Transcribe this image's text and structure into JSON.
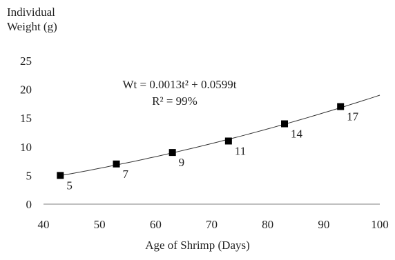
{
  "chart_data": {
    "type": "scatter",
    "ylabel_line1": "Individual",
    "ylabel_line2": "Weight (g)",
    "xlabel": "Age of Shrimp (Days)",
    "xlim": [
      40,
      100
    ],
    "ylim": [
      0,
      25
    ],
    "x_ticks": [
      "40",
      "50",
      "60",
      "70",
      "80",
      "90",
      "100"
    ],
    "y_ticks": [
      "0",
      "5",
      "10",
      "15",
      "20",
      "25"
    ],
    "points": [
      {
        "x": 43,
        "y": 5,
        "label": "5"
      },
      {
        "x": 53,
        "y": 7,
        "label": "7"
      },
      {
        "x": 63,
        "y": 9,
        "label": "9"
      },
      {
        "x": 73,
        "y": 11,
        "label": "11"
      },
      {
        "x": 83,
        "y": 14,
        "label": "14"
      },
      {
        "x": 93,
        "y": 17,
        "label": "17"
      }
    ],
    "trendline": {
      "a": 0.0013,
      "b": 0.0599,
      "x_range": [
        43,
        100
      ]
    },
    "equation": "Wt = 0.0013t² + 0.0599t",
    "r_squared": "R² = 99%",
    "colors": {
      "marker": "#000000",
      "line": "#333333",
      "axis": "#7f7f7f"
    }
  }
}
